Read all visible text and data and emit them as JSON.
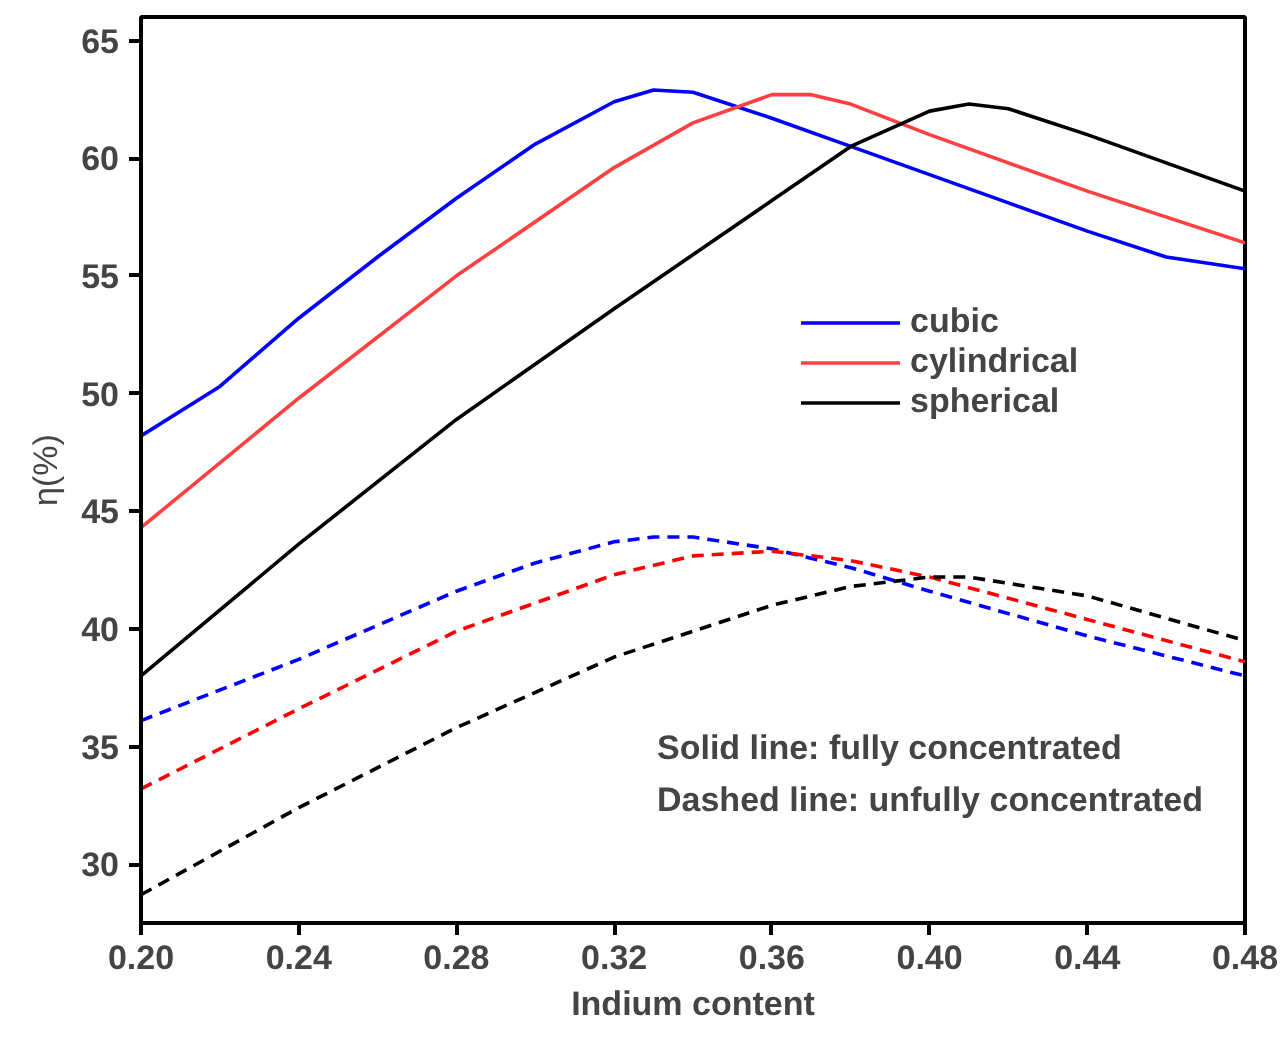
{
  "chart_data": {
    "type": "line",
    "xlabel": "Indium content",
    "ylabel": "η(%)",
    "xlim": [
      0.2,
      0.48
    ],
    "ylim": [
      27.5,
      66
    ],
    "xticks": [
      {
        "value": 0.2,
        "label": "0.20"
      },
      {
        "value": 0.24,
        "label": "0.24"
      },
      {
        "value": 0.28,
        "label": "0.28"
      },
      {
        "value": 0.32,
        "label": "0.32"
      },
      {
        "value": 0.36,
        "label": "0.36"
      },
      {
        "value": 0.4,
        "label": "0.40"
      },
      {
        "value": 0.44,
        "label": "0.44"
      },
      {
        "value": 0.48,
        "label": "0.48"
      }
    ],
    "yticks": [
      30,
      35,
      40,
      45,
      50,
      55,
      60,
      65
    ],
    "grid": false,
    "legend": "right",
    "marker": "none",
    "series": [
      {
        "name": "cubic",
        "color": "#0000ff",
        "line_style": "solid",
        "x": [
          0.2,
          0.22,
          0.24,
          0.26,
          0.28,
          0.3,
          0.32,
          0.33,
          0.34,
          0.36,
          0.38,
          0.4,
          0.42,
          0.44,
          0.46,
          0.48
        ],
        "values": [
          48.2,
          50.3,
          53.2,
          55.8,
          58.3,
          60.6,
          62.4,
          62.9,
          62.8,
          61.7,
          60.5,
          59.3,
          58.1,
          56.9,
          55.8,
          55.3
        ]
      },
      {
        "name": "cylindrical",
        "color": "#ff4040",
        "line_style": "solid",
        "x": [
          0.2,
          0.24,
          0.28,
          0.32,
          0.34,
          0.36,
          0.37,
          0.38,
          0.4,
          0.44,
          0.48
        ],
        "values": [
          44.3,
          49.8,
          55.0,
          59.6,
          61.5,
          62.7,
          62.7,
          62.3,
          61.0,
          58.6,
          56.4
        ]
      },
      {
        "name": "spherical",
        "color": "#000000",
        "line_style": "solid",
        "x": [
          0.2,
          0.24,
          0.28,
          0.32,
          0.36,
          0.38,
          0.4,
          0.41,
          0.42,
          0.44,
          0.48
        ],
        "values": [
          38.0,
          43.6,
          48.9,
          53.6,
          58.2,
          60.5,
          62.0,
          62.3,
          62.1,
          61.0,
          58.6
        ]
      },
      {
        "color": "#0000ff",
        "line_style": "dashed",
        "x": [
          0.2,
          0.24,
          0.28,
          0.3,
          0.32,
          0.33,
          0.34,
          0.36,
          0.38,
          0.4,
          0.44,
          0.48
        ],
        "values": [
          36.1,
          38.7,
          41.6,
          42.8,
          43.7,
          43.9,
          43.9,
          43.4,
          42.6,
          41.6,
          39.7,
          38.0
        ]
      },
      {
        "color": "#ff0000",
        "line_style": "dashed",
        "x": [
          0.2,
          0.24,
          0.28,
          0.32,
          0.34,
          0.36,
          0.38,
          0.4,
          0.44,
          0.48
        ],
        "values": [
          33.2,
          36.6,
          39.9,
          42.3,
          43.1,
          43.3,
          42.9,
          42.2,
          40.4,
          38.6
        ]
      },
      {
        "color": "#000000",
        "line_style": "dashed",
        "x": [
          0.2,
          0.24,
          0.28,
          0.32,
          0.36,
          0.38,
          0.4,
          0.41,
          0.44,
          0.48
        ],
        "values": [
          28.7,
          32.4,
          35.8,
          38.8,
          41.0,
          41.8,
          42.2,
          42.2,
          41.4,
          39.5
        ]
      }
    ],
    "annotations": [
      "Solid line: fully concentrated",
      "Dashed line: unfully concentrated"
    ]
  }
}
